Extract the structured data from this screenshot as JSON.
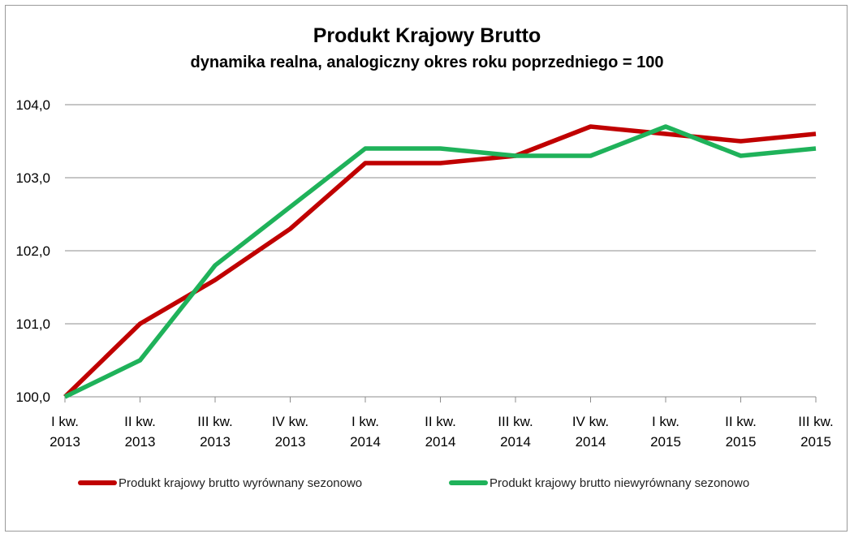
{
  "chart_data": {
    "type": "line",
    "title": "Produkt Krajowy Brutto",
    "subtitle": "dynamika realna, analogiczny okres roku poprzedniego = 100",
    "categories": [
      [
        "I kw.",
        "2013"
      ],
      [
        "II kw.",
        "2013"
      ],
      [
        "III kw.",
        "2013"
      ],
      [
        "IV kw.",
        "2013"
      ],
      [
        "I kw.",
        "2014"
      ],
      [
        "II kw.",
        "2014"
      ],
      [
        "III kw.",
        "2014"
      ],
      [
        "IV kw.",
        "2014"
      ],
      [
        "I kw.",
        "2015"
      ],
      [
        "II kw.",
        "2015"
      ],
      [
        "III kw.",
        "2015"
      ]
    ],
    "ylim": [
      100,
      104
    ],
    "yticks": [
      100,
      101,
      102,
      103,
      104
    ],
    "ytick_labels": [
      "100,0",
      "101,0",
      "102,0",
      "103,0",
      "104,0"
    ],
    "grid": true,
    "legend_position": "bottom",
    "series": [
      {
        "name": "Produkt krajowy brutto wyrównany sezonowo",
        "color": "#c00000",
        "values": [
          100.0,
          101.0,
          101.6,
          102.3,
          103.2,
          103.2,
          103.3,
          103.7,
          103.6,
          103.5,
          103.6
        ]
      },
      {
        "name": "Produkt krajowy brutto niewyrównany sezonowo",
        "color": "#1fb25a",
        "values": [
          100.0,
          100.5,
          101.8,
          102.6,
          103.4,
          103.4,
          103.3,
          103.3,
          103.7,
          103.3,
          103.4
        ]
      }
    ]
  }
}
